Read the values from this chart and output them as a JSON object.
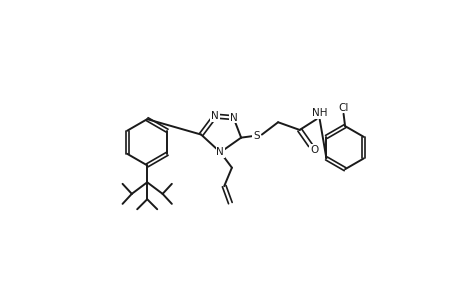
{
  "background_color": "#ffffff",
  "line_color": "#1a1a1a",
  "line_width": 1.4,
  "font_size": 7.5,
  "fig_width": 4.6,
  "fig_height": 3.0,
  "dpi": 100,
  "xlim": [
    0,
    4.6
  ],
  "ylim": [
    0,
    3.0
  ]
}
